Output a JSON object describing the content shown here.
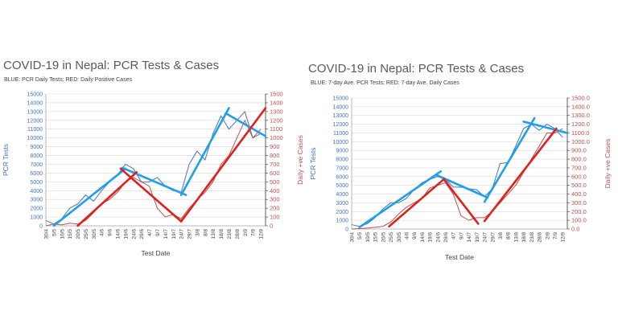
{
  "chart_data": [
    {
      "type": "line",
      "title": "COVID-19 in Nepal: PCR Tests & Cases",
      "subtitle": "BLUE: PCR Daily Tests; RED: Daily Positive Cases",
      "xlabel": "Test Date",
      "ylabel": "PCR Tests",
      "y2label": "Daily +ve Cases",
      "ylim": [
        0,
        15000
      ],
      "y2lim": [
        0,
        1500
      ],
      "yticks": [
        "0",
        "1000",
        "2000",
        "3000",
        "4000",
        "5000",
        "6000",
        "7000",
        "8000",
        "9000",
        "10000",
        "11000",
        "12000",
        "13000",
        "14000",
        "15000"
      ],
      "y2ticks": [
        "0",
        "100",
        "200",
        "300",
        "400",
        "500",
        "600",
        "700",
        "800",
        "900",
        "1000",
        "1100",
        "1200",
        "1300",
        "1400",
        "1500"
      ],
      "categories": [
        "30/4",
        "5/5",
        "10/5",
        "15/5",
        "20/5",
        "25/5",
        "30/5",
        "4/6",
        "9/6",
        "14/6",
        "19/6",
        "24/6",
        "29/6",
        "4/7",
        "9/7",
        "14/7",
        "19/7",
        "24/7",
        "29/7",
        "3/8",
        "8/8",
        "13/8",
        "18/8",
        "23/8",
        "28/8",
        "2/9",
        "7/9",
        "12/9"
      ],
      "grid": true,
      "colors": {
        "tests": "#4472c4",
        "cases": "#c0504d",
        "tests_trend": "#1ea0e6",
        "cases_trend": "#e0201c"
      },
      "series": [
        {
          "axis": "left",
          "values": [
            600,
            200,
            800,
            2000,
            2500,
            3500,
            2800,
            4000,
            5000,
            5800,
            7000,
            6500,
            5000,
            5000,
            5500,
            4500,
            4000,
            3800,
            7000,
            8500,
            7500,
            10500,
            12500,
            11000,
            12000,
            13000,
            10000,
            10500
          ]
        },
        {
          "axis": "right",
          "values": [
            0,
            20,
            10,
            30,
            20,
            60,
            150,
            250,
            300,
            380,
            500,
            550,
            500,
            450,
            200,
            100,
            130,
            80,
            200,
            300,
            380,
            500,
            700,
            800,
            1000,
            1200,
            1000,
            1100
          ]
        }
      ],
      "trendlines": [
        {
          "axis": "left",
          "from": [
            "5/5",
            0
          ],
          "to": [
            "19/6",
            6500
          ]
        },
        {
          "axis": "left",
          "from": [
            "17/6",
            6600
          ],
          "to": [
            "27/7",
            3500
          ]
        },
        {
          "axis": "left",
          "from": [
            "24/7",
            3500
          ],
          "to": [
            "23/8",
            13400
          ]
        },
        {
          "axis": "left",
          "from": [
            "21/8",
            12800
          ],
          "to": [
            "15/9",
            10200
          ]
        },
        {
          "axis": "right",
          "from": [
            "20/5",
            0
          ],
          "to": [
            "26/6",
            610
          ]
        },
        {
          "axis": "right",
          "from": [
            "16/6",
            650
          ],
          "to": [
            "24/7",
            50
          ]
        },
        {
          "axis": "right",
          "from": [
            "24/7",
            50
          ],
          "to": [
            "15/9",
            1340
          ]
        }
      ]
    },
    {
      "type": "line",
      "title": "COVID-19 in Nepal: PCR Tests & Cases",
      "subtitle": "BLUE: 7-day Ave. PCR Tests; RED: 7-day Ave. Daily Cases",
      "xlabel": "Test Date",
      "ylabel": "PCR Tests",
      "y2label": "Daily +ve Cases",
      "ylim": [
        0,
        15000
      ],
      "y2lim": [
        0,
        1500
      ],
      "yticks": [
        "0",
        "1000",
        "2000",
        "3000",
        "4000",
        "5000",
        "6000",
        "7000",
        "8000",
        "9000",
        "10000",
        "11000",
        "12000",
        "13000",
        "14000",
        "15000"
      ],
      "y2ticks": [
        "0.0",
        "100.0",
        "200.0",
        "300.0",
        "400.0",
        "500.0",
        "600.0",
        "700.0",
        "800.0",
        "900.0",
        "1000.0",
        "1100.0",
        "1200.0",
        "1300.0",
        "1400.0",
        "1500.0"
      ],
      "categories": [
        "30/4",
        "5/5",
        "10/5",
        "15/5",
        "20/5",
        "25/5",
        "30/5",
        "4/6",
        "9/6",
        "14/6",
        "19/6",
        "24/6",
        "29/6",
        "4/7",
        "9/7",
        "14/7",
        "19/7",
        "24/7",
        "29/7",
        "3/8",
        "8/8",
        "13/8",
        "18/8",
        "23/8",
        "28/8",
        "2/9",
        "7/9",
        "12/9"
      ],
      "grid": true,
      "colors": {
        "tests": "#4472c4",
        "cases": "#c0504d",
        "tests_trend": "#1ea0e6",
        "cases_trend": "#e0201c"
      },
      "series": [
        {
          "axis": "left",
          "values": [
            500,
            300,
            600,
            1300,
            2300,
            3000,
            3000,
            3500,
            4500,
            5300,
            5700,
            6000,
            5700,
            4800,
            4800,
            4600,
            4500,
            3700,
            4600,
            7500,
            7600,
            9500,
            11500,
            12000,
            11300,
            12000,
            11500,
            10500
          ]
        },
        {
          "axis": "right",
          "values": [
            0,
            5,
            10,
            20,
            30,
            80,
            170,
            250,
            300,
            350,
            470,
            500,
            530,
            400,
            150,
            100,
            130,
            130,
            200,
            300,
            400,
            500,
            650,
            800,
            950,
            1100,
            1100,
            1150
          ]
        }
      ],
      "trendlines": [
        {
          "axis": "left",
          "from": [
            "5/5",
            200
          ],
          "to": [
            "26/6",
            6600
          ]
        },
        {
          "axis": "left",
          "from": [
            "23/6",
            6200
          ],
          "to": [
            "26/7",
            3600
          ]
        },
        {
          "axis": "left",
          "from": [
            "24/7",
            3100
          ],
          "to": [
            "25/8",
            12700
          ]
        },
        {
          "axis": "left",
          "from": [
            "18/8",
            12300
          ],
          "to": [
            "15/9",
            11000
          ]
        },
        {
          "axis": "right",
          "from": [
            "24/5",
            30
          ],
          "to": [
            "28/6",
            570
          ]
        },
        {
          "axis": "right",
          "from": [
            "28/6",
            570
          ],
          "to": [
            "20/7",
            60
          ]
        },
        {
          "axis": "right",
          "from": [
            "24/7",
            90
          ],
          "to": [
            "8/9",
            1150
          ]
        }
      ]
    }
  ]
}
